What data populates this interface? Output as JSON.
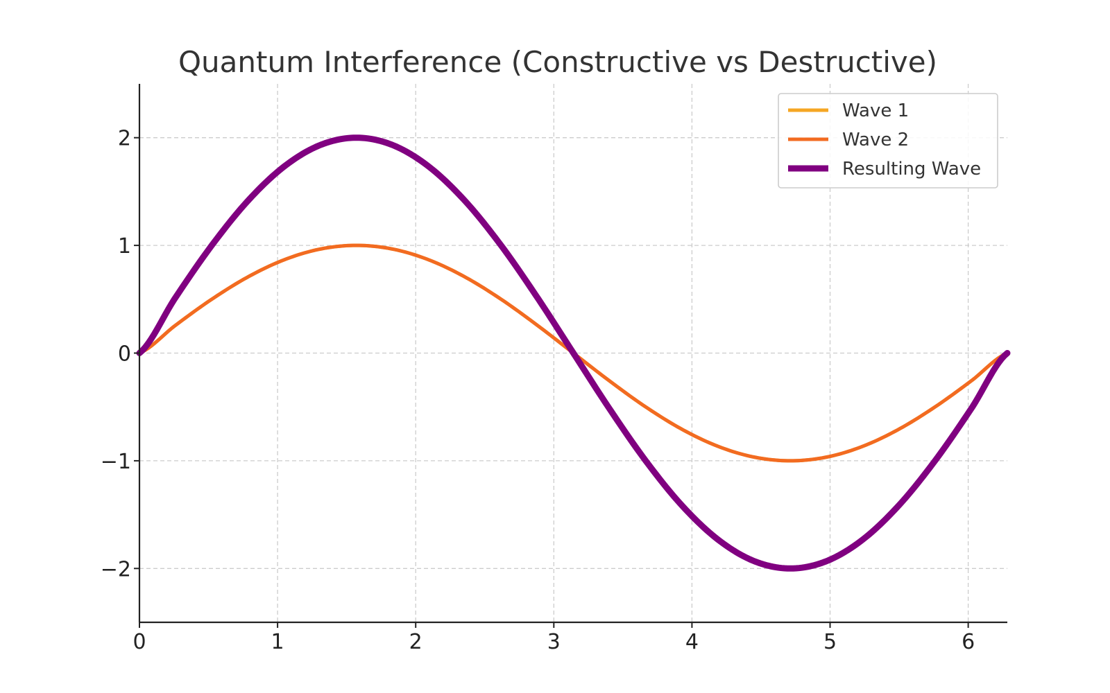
{
  "chart_data": {
    "type": "line",
    "title": "Quantum Interference (Constructive vs Destructive)",
    "xlabel": "",
    "ylabel": "",
    "xlim": [
      0,
      6.2832
    ],
    "ylim": [
      -2.5,
      2.5
    ],
    "x_ticks": [
      "0",
      "1",
      "2",
      "3",
      "4",
      "5",
      "6"
    ],
    "y_ticks": [
      "2",
      "1",
      "0",
      "−1",
      "−2"
    ],
    "grid": true,
    "legend_position": "top-right",
    "x": [
      0,
      0.2618,
      0.5236,
      0.7854,
      1.0472,
      1.309,
      1.5708,
      1.8326,
      2.0944,
      2.3562,
      2.618,
      2.8798,
      3.1416,
      3.4034,
      3.6652,
      3.927,
      4.1888,
      4.4506,
      4.7124,
      4.9742,
      5.236,
      5.4978,
      5.7596,
      6.0214,
      6.2832
    ],
    "series": [
      {
        "name": "Wave 1",
        "color": "#f5a623",
        "values": [
          0,
          0.2588,
          0.5,
          0.7071,
          0.866,
          0.9659,
          1,
          0.9659,
          0.866,
          0.7071,
          0.5,
          0.2588,
          0,
          -0.2588,
          -0.5,
          -0.7071,
          -0.866,
          -0.9659,
          -1,
          -0.9659,
          -0.866,
          -0.7071,
          -0.5,
          -0.2588,
          0
        ]
      },
      {
        "name": "Wave 2",
        "color": "#f26b21",
        "values": [
          0,
          0.2588,
          0.5,
          0.7071,
          0.866,
          0.9659,
          1,
          0.9659,
          0.866,
          0.7071,
          0.5,
          0.2588,
          0,
          -0.2588,
          -0.5,
          -0.7071,
          -0.866,
          -0.9659,
          -1,
          -0.9659,
          -0.866,
          -0.7071,
          -0.5,
          -0.2588,
          0
        ]
      },
      {
        "name": "Resulting Wave",
        "color": "#800080",
        "values": [
          0,
          0.5176,
          1,
          1.4142,
          1.7321,
          1.9319,
          2,
          1.9319,
          1.7321,
          1.4142,
          1,
          0.5176,
          0,
          -0.5176,
          -1,
          -1.4142,
          -1.7321,
          -1.9319,
          -2,
          -1.9319,
          -1.7321,
          -1.4142,
          -1,
          -0.5176,
          0
        ]
      }
    ]
  }
}
